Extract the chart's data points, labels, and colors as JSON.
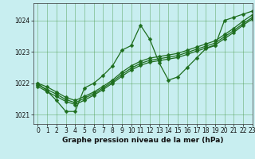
{
  "title": "Graphe pression niveau de la mer (hPa)",
  "background_color": "#c8eef0",
  "grid_color": "#4a9a4a",
  "line_color": "#1e6e1e",
  "xlim": [
    -0.5,
    23
  ],
  "ylim": [
    1020.7,
    1024.55
  ],
  "xticks": [
    0,
    1,
    2,
    3,
    4,
    5,
    6,
    7,
    8,
    9,
    10,
    11,
    12,
    13,
    14,
    15,
    16,
    17,
    18,
    19,
    20,
    21,
    22,
    23
  ],
  "yticks": [
    1021,
    1022,
    1023,
    1024
  ],
  "series": [
    [
      1022.0,
      1021.75,
      1021.45,
      1021.1,
      1021.1,
      1021.85,
      1022.0,
      1022.25,
      1022.55,
      1023.05,
      1023.2,
      1023.85,
      1023.4,
      1022.65,
      1022.1,
      1022.2,
      1022.5,
      1022.8,
      1023.1,
      1023.2,
      1024.0,
      1024.1,
      1024.2,
      1024.3
    ],
    [
      1022.0,
      1021.88,
      1021.72,
      1021.55,
      1021.45,
      1021.58,
      1021.72,
      1021.9,
      1022.1,
      1022.35,
      1022.55,
      1022.7,
      1022.8,
      1022.85,
      1022.9,
      1022.95,
      1023.05,
      1023.15,
      1023.25,
      1023.35,
      1023.55,
      1023.75,
      1023.98,
      1024.18
    ],
    [
      1021.95,
      1021.8,
      1021.65,
      1021.48,
      1021.38,
      1021.52,
      1021.67,
      1021.85,
      1022.05,
      1022.28,
      1022.48,
      1022.63,
      1022.73,
      1022.78,
      1022.83,
      1022.88,
      1022.98,
      1023.08,
      1023.18,
      1023.28,
      1023.48,
      1023.68,
      1023.9,
      1024.1
    ],
    [
      1021.9,
      1021.73,
      1021.58,
      1021.42,
      1021.32,
      1021.46,
      1021.62,
      1021.8,
      1022.0,
      1022.22,
      1022.42,
      1022.57,
      1022.67,
      1022.72,
      1022.77,
      1022.82,
      1022.92,
      1023.02,
      1023.12,
      1023.22,
      1023.42,
      1023.62,
      1023.85,
      1024.05
    ]
  ],
  "markersize": 2.5,
  "linewidth": 0.9,
  "tick_fontsize": 5.5,
  "label_fontsize": 6.5
}
